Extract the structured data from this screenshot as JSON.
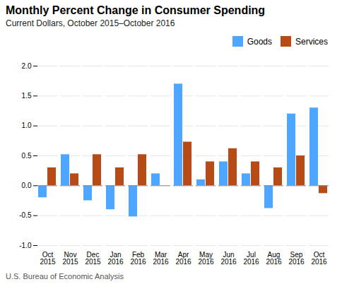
{
  "chart_data": {
    "type": "bar",
    "title": "Monthly Percent Change in Consumer Spending",
    "subtitle": "Current Dollars, October 2015–October 2016",
    "caption": "U.S. Bureau of Economic Analysis",
    "categories": [
      "Oct\n2015",
      "Nov\n2015",
      "Dec\n2015",
      "Jan\n2016",
      "Feb\n2016",
      "Mar\n2016",
      "Apr\n2016",
      "May\n2016",
      "Jun\n2016",
      "Jul\n2016",
      "Aug\n2016",
      "Sep\n2016",
      "Oct\n2016"
    ],
    "series": [
      {
        "name": "Goods",
        "color": "#4da6ff",
        "values": [
          -0.2,
          0.52,
          -0.25,
          -0.4,
          -0.52,
          0.2,
          1.7,
          0.1,
          0.4,
          0.2,
          -0.38,
          1.2,
          1.3
        ]
      },
      {
        "name": "Services",
        "color": "#b84a16",
        "values": [
          0.3,
          0.2,
          0.52,
          0.3,
          0.52,
          0.0,
          0.73,
          0.4,
          0.62,
          0.4,
          0.3,
          0.5,
          -0.13
        ]
      }
    ],
    "ylim": [
      -1.0,
      2.0
    ],
    "yticks": [
      {
        "value": -1,
        "label": "-1.0"
      },
      -0.5,
      {
        "value": 0,
        "label": "0.0"
      },
      0.5,
      {
        "value": 1,
        "label": "1.0"
      },
      1.5,
      {
        "value": 2,
        "label": "2.0"
      }
    ],
    "grid": true,
    "legend": "upper right"
  }
}
